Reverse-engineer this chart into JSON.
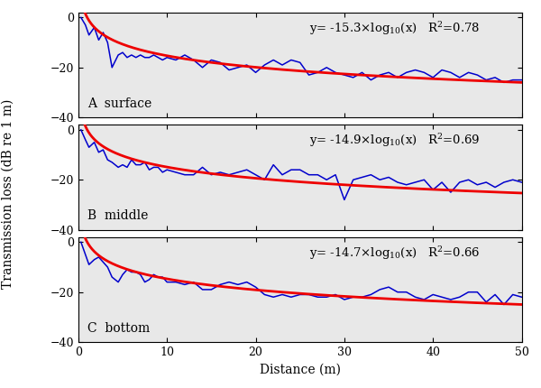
{
  "panels": [
    {
      "label": "A  surface",
      "coeff": -15.3,
      "r2_val": "0.78",
      "blue_x": [
        0.3,
        0.8,
        1.2,
        1.8,
        2.3,
        2.8,
        3.3,
        3.8,
        4.5,
        5.0,
        5.5,
        6.0,
        6.5,
        7.0,
        7.5,
        8.0,
        8.5,
        9.0,
        9.5,
        10.0,
        11.0,
        12.0,
        13.0,
        14.0,
        15.0,
        16.0,
        17.0,
        18.0,
        19.0,
        20.0,
        21.0,
        22.0,
        23.0,
        24.0,
        25.0,
        26.0,
        27.0,
        28.0,
        29.0,
        30.0,
        31.0,
        32.0,
        33.0,
        34.0,
        35.0,
        36.0,
        37.0,
        38.0,
        39.0,
        40.0,
        41.0,
        42.0,
        43.0,
        44.0,
        45.0,
        46.0,
        47.0,
        48.0,
        49.0,
        50.0
      ],
      "blue_y": [
        0,
        -3,
        -7,
        -4,
        -9,
        -6,
        -10,
        -20,
        -15,
        -14,
        -16,
        -15,
        -16,
        -15,
        -16,
        -16,
        -15,
        -16,
        -17,
        -16,
        -17,
        -15,
        -17,
        -20,
        -17,
        -18,
        -21,
        -20,
        -19,
        -22,
        -19,
        -17,
        -19,
        -17,
        -18,
        -23,
        -22,
        -20,
        -22,
        -23,
        -24,
        -22,
        -25,
        -23,
        -22,
        -24,
        -22,
        -21,
        -22,
        -24,
        -21,
        -22,
        -24,
        -22,
        -23,
        -25,
        -24,
        -26,
        -25,
        -25
      ]
    },
    {
      "label": "B  middle",
      "coeff": -14.9,
      "r2_val": "0.69",
      "blue_x": [
        0.3,
        0.8,
        1.2,
        1.8,
        2.3,
        2.8,
        3.3,
        3.8,
        4.5,
        5.0,
        5.5,
        6.0,
        6.5,
        7.0,
        7.5,
        8.0,
        8.5,
        9.0,
        9.5,
        10.0,
        11.0,
        12.0,
        13.0,
        14.0,
        15.0,
        16.0,
        17.0,
        18.0,
        19.0,
        20.0,
        21.0,
        22.0,
        23.0,
        24.0,
        25.0,
        26.0,
        27.0,
        28.0,
        29.0,
        30.0,
        31.0,
        32.0,
        33.0,
        34.0,
        35.0,
        36.0,
        37.0,
        38.0,
        39.0,
        40.0,
        41.0,
        42.0,
        43.0,
        44.0,
        45.0,
        46.0,
        47.0,
        48.0,
        49.0,
        50.0
      ],
      "blue_y": [
        0,
        -4,
        -7,
        -5,
        -9,
        -8,
        -12,
        -13,
        -15,
        -14,
        -15,
        -12,
        -14,
        -14,
        -13,
        -16,
        -15,
        -15,
        -17,
        -16,
        -17,
        -18,
        -18,
        -15,
        -18,
        -17,
        -18,
        -17,
        -16,
        -18,
        -20,
        -14,
        -18,
        -16,
        -16,
        -18,
        -18,
        -20,
        -18,
        -28,
        -20,
        -19,
        -18,
        -20,
        -19,
        -21,
        -22,
        -21,
        -20,
        -24,
        -21,
        -25,
        -21,
        -20,
        -22,
        -21,
        -23,
        -21,
        -20,
        -21
      ]
    },
    {
      "label": "C  bottom",
      "coeff": -14.7,
      "r2_val": "0.66",
      "blue_x": [
        0.3,
        0.8,
        1.2,
        1.8,
        2.3,
        2.8,
        3.3,
        3.8,
        4.5,
        5.0,
        5.5,
        6.0,
        6.5,
        7.0,
        7.5,
        8.0,
        8.5,
        9.0,
        9.5,
        10.0,
        11.0,
        12.0,
        13.0,
        14.0,
        15.0,
        16.0,
        17.0,
        18.0,
        19.0,
        20.0,
        21.0,
        22.0,
        23.0,
        24.0,
        25.0,
        26.0,
        27.0,
        28.0,
        29.0,
        30.0,
        31.0,
        32.0,
        33.0,
        34.0,
        35.0,
        36.0,
        37.0,
        38.0,
        39.0,
        40.0,
        41.0,
        42.0,
        43.0,
        44.0,
        45.0,
        46.0,
        47.0,
        48.0,
        49.0,
        50.0
      ],
      "blue_y": [
        0,
        -5,
        -9,
        -7,
        -6,
        -8,
        -10,
        -14,
        -16,
        -13,
        -11,
        -12,
        -12,
        -13,
        -16,
        -15,
        -13,
        -14,
        -14,
        -16,
        -16,
        -17,
        -16,
        -19,
        -19,
        -17,
        -16,
        -17,
        -16,
        -18,
        -21,
        -22,
        -21,
        -22,
        -21,
        -21,
        -22,
        -22,
        -21,
        -23,
        -22,
        -22,
        -21,
        -19,
        -18,
        -20,
        -20,
        -22,
        -23,
        -21,
        -22,
        -23,
        -22,
        -20,
        -20,
        -24,
        -21,
        -25,
        -21,
        -22
      ]
    }
  ],
  "xlim": [
    0,
    50
  ],
  "ylim": [
    -40,
    2
  ],
  "yticks": [
    0,
    -20,
    -40
  ],
  "xticks": [
    0,
    10,
    20,
    30,
    40,
    50
  ],
  "xlabel": "Distance (m)",
  "ylabel": "Transmission loss (dB re 1 m)",
  "blue_color": "#0000CC",
  "red_color": "#EE0000",
  "bg_color": "#E8E8E8",
  "blue_lw": 1.1,
  "red_lw": 2.0,
  "fig_width": 6.0,
  "fig_height": 4.3,
  "dpi": 100,
  "label_fontsize": 10,
  "eq_fontsize": 9.5,
  "tick_fontsize": 9,
  "axis_label_fontsize": 10
}
